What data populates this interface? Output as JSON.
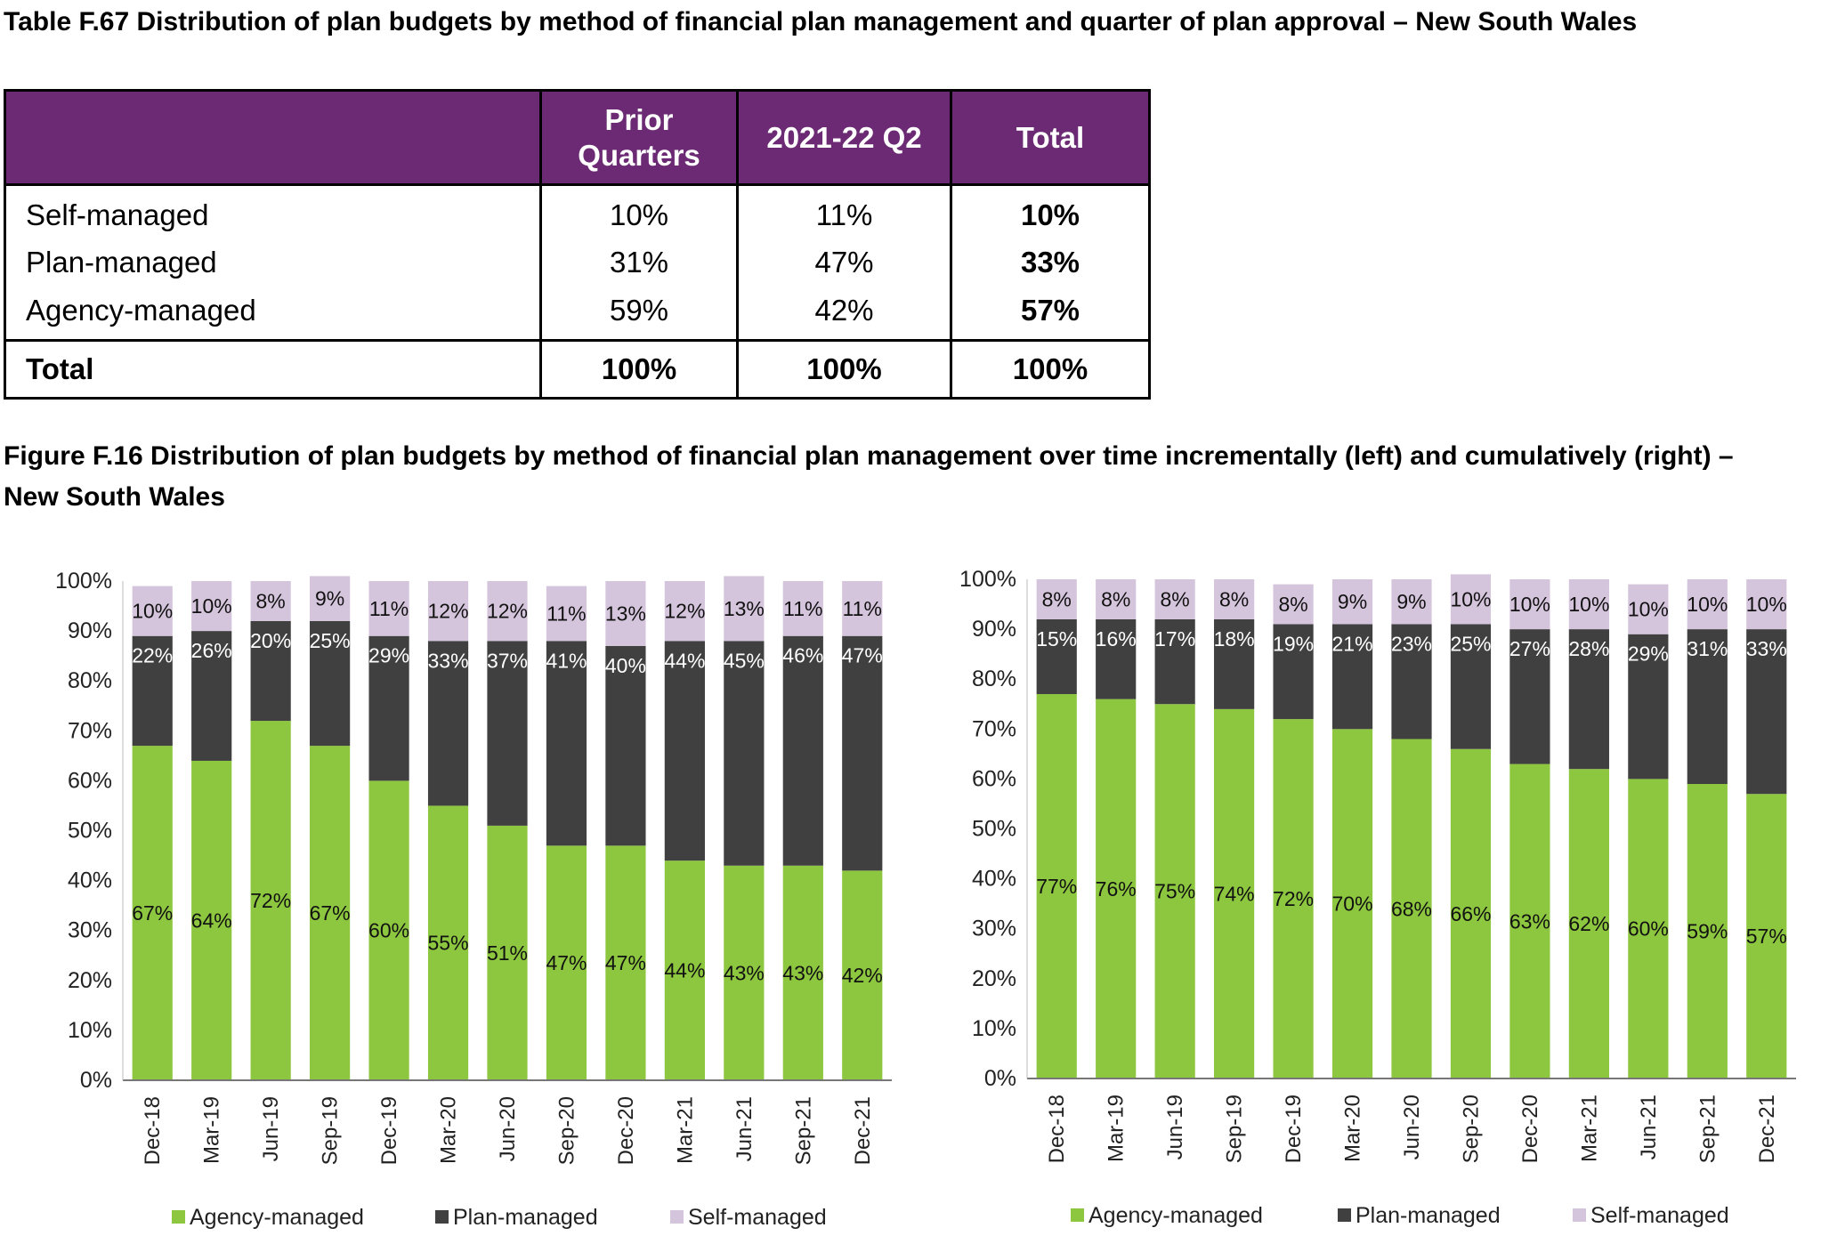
{
  "table_title": "Table F.67 Distribution of plan budgets by method of financial plan management and quarter of plan approval – New South Wales",
  "table": {
    "headers": [
      "",
      "Prior Quarters",
      "2021-22 Q2",
      "Total"
    ],
    "rows": [
      {
        "label": "Self-managed",
        "prior": "10%",
        "q2": "11%",
        "total": "10%"
      },
      {
        "label": "Plan-managed",
        "prior": "31%",
        "q2": "47%",
        "total": "33%"
      },
      {
        "label": "Agency-managed",
        "prior": "59%",
        "q2": "42%",
        "total": "57%"
      }
    ],
    "total_row": {
      "label": "Total",
      "prior": "100%",
      "q2": "100%",
      "total": "100%"
    }
  },
  "figure_title": "Figure F.16 Distribution of plan budgets by method of financial plan management over time incrementally (left) and cumulatively (right) – New South Wales",
  "colors": {
    "header_purple": "#6b2a73",
    "agency": "#8dc63f",
    "plan": "#404040",
    "self": "#d5c5dc"
  },
  "chart_data": [
    {
      "type": "bar",
      "stacked": true,
      "categories": [
        "Dec-18",
        "Mar-19",
        "Jun-19",
        "Sep-19",
        "Dec-19",
        "Mar-20",
        "Jun-20",
        "Sep-20",
        "Dec-20",
        "Mar-21",
        "Jun-21",
        "Sep-21",
        "Dec-21"
      ],
      "yticks": [
        "0%",
        "10%",
        "20%",
        "30%",
        "40%",
        "50%",
        "60%",
        "70%",
        "80%",
        "90%",
        "100%"
      ],
      "ylim": [
        0,
        100
      ],
      "legend": "bottom",
      "series": [
        {
          "name": "Agency-managed",
          "values": [
            67,
            64,
            72,
            67,
            60,
            55,
            51,
            47,
            47,
            44,
            43,
            43,
            42
          ]
        },
        {
          "name": "Plan-managed",
          "values": [
            22,
            26,
            20,
            25,
            29,
            33,
            37,
            41,
            40,
            44,
            45,
            46,
            47
          ]
        },
        {
          "name": "Self-managed",
          "values": [
            10,
            10,
            8,
            9,
            11,
            12,
            12,
            11,
            13,
            12,
            13,
            11,
            11
          ]
        }
      ]
    },
    {
      "type": "bar",
      "stacked": true,
      "categories": [
        "Dec-18",
        "Mar-19",
        "Jun-19",
        "Sep-19",
        "Dec-19",
        "Mar-20",
        "Jun-20",
        "Sep-20",
        "Dec-20",
        "Mar-21",
        "Jun-21",
        "Sep-21",
        "Dec-21"
      ],
      "yticks": [
        "0%",
        "10%",
        "20%",
        "30%",
        "40%",
        "50%",
        "60%",
        "70%",
        "80%",
        "90%",
        "100%"
      ],
      "ylim": [
        0,
        100
      ],
      "legend": "bottom",
      "series": [
        {
          "name": "Agency-managed",
          "values": [
            77,
            76,
            75,
            74,
            72,
            70,
            68,
            66,
            63,
            62,
            60,
            59,
            57
          ]
        },
        {
          "name": "Plan-managed",
          "values": [
            15,
            16,
            17,
            18,
            19,
            21,
            23,
            25,
            27,
            28,
            29,
            31,
            33
          ]
        },
        {
          "name": "Self-managed",
          "values": [
            8,
            8,
            8,
            8,
            8,
            9,
            9,
            10,
            10,
            10,
            10,
            10,
            10
          ]
        }
      ]
    }
  ]
}
